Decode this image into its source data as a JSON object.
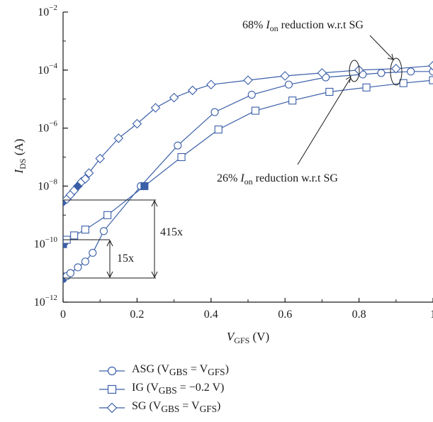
{
  "chart_data": {
    "type": "line",
    "xlabel_main": "V",
    "xlabel_sub": "GFS",
    "xlabel_unit": " (V)",
    "ylabel_main": "I",
    "ylabel_sub": "DS",
    "ylabel_unit": " (A)",
    "xlim": [
      0,
      1
    ],
    "ylim_log10": [
      -12,
      -2
    ],
    "y_scale": "log",
    "x_ticks": [
      "0",
      "0.2",
      "0.4",
      "0.6",
      "0.8",
      "1"
    ],
    "x_tick_values": [
      0,
      0.2,
      0.4,
      0.6,
      0.8,
      1.0
    ],
    "y_tick_exponents": [
      -12,
      -10,
      -8,
      -6,
      -4,
      -2
    ],
    "y_tick_base": "10",
    "y_tick_exp_labels": [
      "−12",
      "−10",
      "−8",
      "−6",
      "−4",
      "−2"
    ],
    "series": [
      {
        "name_main": "ASG (V",
        "name_sub1": "GBS",
        "name_mid": " = V",
        "name_sub2": "GFS",
        "name_end": ")",
        "marker": "circle",
        "color": "#3a5ea8",
        "x": [
          0.0,
          0.01,
          0.02,
          0.04,
          0.06,
          0.08,
          0.11,
          0.21,
          0.31,
          0.41,
          0.51,
          0.61,
          0.71,
          0.81,
          0.86,
          0.94,
          1.0
        ],
        "log10_y": [
          -11.2,
          -11.1,
          -11.0,
          -10.8,
          -10.6,
          -10.3,
          -9.55,
          -8.0,
          -6.6,
          -5.45,
          -4.85,
          -4.5,
          -4.25,
          -4.15,
          -4.1,
          -4.05,
          -4.05
        ],
        "filled_indices": [
          0
        ]
      },
      {
        "name_main": "IG (V",
        "name_sub1": "GBS",
        "name_mid": " = −0.2 V",
        "name_sub2": "",
        "name_end": ")",
        "marker": "square",
        "color": "#3a5ea8",
        "x": [
          0.0,
          0.01,
          0.03,
          0.06,
          0.12,
          0.22,
          0.32,
          0.42,
          0.52,
          0.62,
          0.72,
          0.82,
          0.92,
          1.0
        ],
        "log10_y": [
          -10.0,
          -9.85,
          -9.7,
          -9.5,
          -9.0,
          -8.0,
          -7.0,
          -6.05,
          -5.4,
          -5.05,
          -4.75,
          -4.6,
          -4.45,
          -4.35
        ],
        "filled_indices": [
          0,
          5
        ]
      },
      {
        "name_main": "SG (V",
        "name_sub1": "GBS",
        "name_mid": " = V",
        "name_sub2": "GFS",
        "name_end": ")",
        "marker": "diamond",
        "color": "#3a5ea8",
        "x": [
          0.0,
          0.01,
          0.02,
          0.03,
          0.04,
          0.05,
          0.06,
          0.07,
          0.1,
          0.15,
          0.2,
          0.25,
          0.3,
          0.35,
          0.4,
          0.5,
          0.6,
          0.7,
          0.8,
          0.9,
          1.0
        ],
        "log10_y": [
          -8.55,
          -8.45,
          -8.3,
          -8.15,
          -8.0,
          -7.85,
          -7.75,
          -7.55,
          -7.05,
          -6.35,
          -5.85,
          -5.3,
          -4.95,
          -4.7,
          -4.5,
          -4.35,
          -4.2,
          -4.1,
          -4.0,
          -3.95,
          -3.85
        ],
        "filled_indices": [
          0,
          4
        ]
      }
    ],
    "annotations": {
      "ratio_415": "415x",
      "ratio_15": "15x",
      "upper_pre": "68% ",
      "upper_I": "I",
      "upper_sub": "on",
      "upper_post": " reduction w.r.t SG",
      "lower_pre": "26% ",
      "lower_I": "I",
      "lower_sub": "on",
      "lower_post": " reduction w.r.t SG"
    }
  }
}
